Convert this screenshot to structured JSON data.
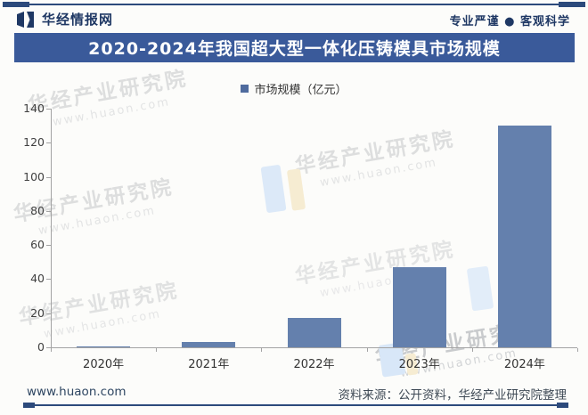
{
  "header": {
    "brand": "华经情报网",
    "tagline": "专业严谨 ● 客观科学",
    "title": "2020-2024年我国超大型一体化压铸模具市场规模"
  },
  "legend": {
    "label": "市场规模（亿元）"
  },
  "chart_data": {
    "type": "bar",
    "title": "2020-2024年我国超大型一体化压铸模具市场规模",
    "legend_entries": [
      "市场规模（亿元）"
    ],
    "legend_position": "top",
    "categories": [
      "2020年",
      "2021年",
      "2022年",
      "2023年",
      "2024年"
    ],
    "values": [
      0.5,
      3,
      17,
      47,
      130
    ],
    "ylabel": "市场规模（亿元）",
    "xlabel": "",
    "ylim": [
      0,
      140
    ],
    "yticks": [
      0,
      20,
      40,
      60,
      80,
      100,
      120,
      140
    ],
    "grid": false,
    "bar_color": "#6480ad"
  },
  "watermark": {
    "text": "华经产业研究院",
    "subtext": "www.huaon.com"
  },
  "footer": {
    "site": "www.huaon.com",
    "source": "资料来源：公开资料，华经产业研究院整理"
  },
  "colors": {
    "accent_navy": "#2c4a7c",
    "title_bg": "#3a5a9a",
    "bar": "#6480ad",
    "legend_swatch": "#4f6b9e"
  }
}
